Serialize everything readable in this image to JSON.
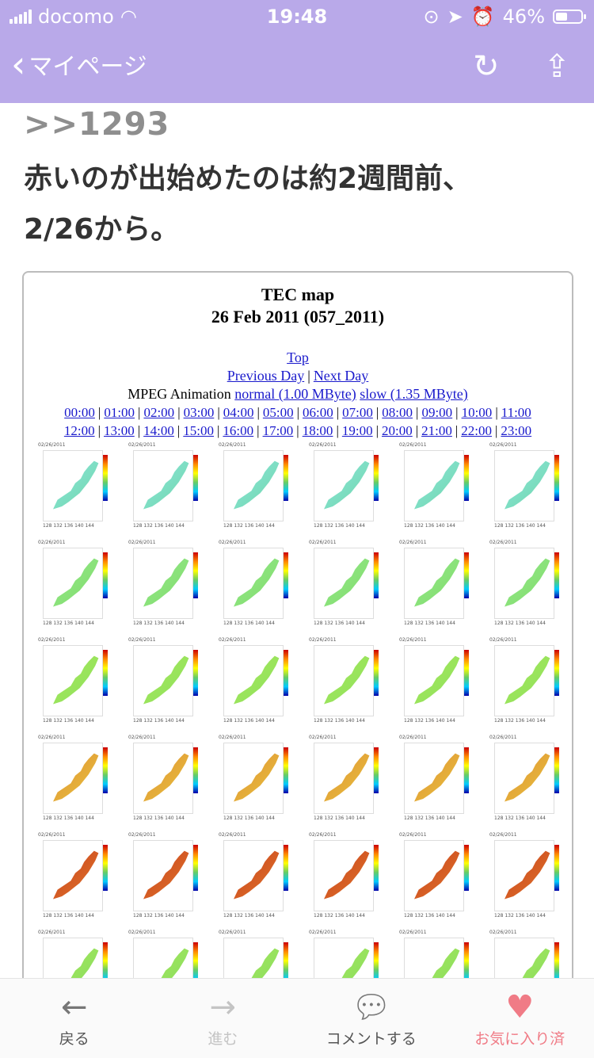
{
  "status": {
    "carrier": "docomo",
    "time": "19:48",
    "battery": "46%"
  },
  "nav": {
    "back_label": "マイページ"
  },
  "post": {
    "quote": ">>1293",
    "lines": [
      "赤いのが出始めたのは約2週間前、",
      "2/26から。"
    ]
  },
  "tec": {
    "title": "TEC map",
    "subtitle": "26 Feb 2011 (057_2011)",
    "top": "Top",
    "prev": "Previous Day",
    "next": "Next Day",
    "mpeg_label": "MPEG Animation",
    "normal": "normal (1.00 MByte)",
    "slow": "slow (1.35 MByte)",
    "hours": [
      "00:00",
      "01:00",
      "02:00",
      "03:00",
      "04:00",
      "05:00",
      "06:00",
      "07:00",
      "08:00",
      "09:00",
      "10:00",
      "11:00",
      "12:00",
      "13:00",
      "14:00",
      "15:00",
      "16:00",
      "17:00",
      "18:00",
      "19:00",
      "20:00",
      "21:00",
      "22:00",
      "23:00"
    ],
    "map_date": "02/26/2011",
    "map_tick_labels": "128 132 136 140 144",
    "map_palettes": [
      {
        "land": "#6ed6a8",
        "accent": "#8fe6e0"
      },
      {
        "land": "#7fdc6a",
        "accent": "#96e88c"
      },
      {
        "land": "#8ee05a",
        "accent": "#a6e85e"
      },
      {
        "land": "#e8c840",
        "accent": "#e08a32"
      },
      {
        "land": "#e07a2c",
        "accent": "#c83c1c"
      },
      {
        "land": "#86dc5c",
        "accent": "#a8e860"
      }
    ]
  },
  "tabs": [
    {
      "label": "戻る",
      "icon": "arrow-left-icon"
    },
    {
      "label": "進む",
      "icon": "arrow-right-icon"
    },
    {
      "label": "コメントする",
      "icon": "comment-icon"
    },
    {
      "label": "お気に入り済",
      "icon": "heart-icon"
    }
  ],
  "colors": {
    "header": "#b9a9e9",
    "favorite": "#f07b86",
    "link": "#1a1acc"
  }
}
